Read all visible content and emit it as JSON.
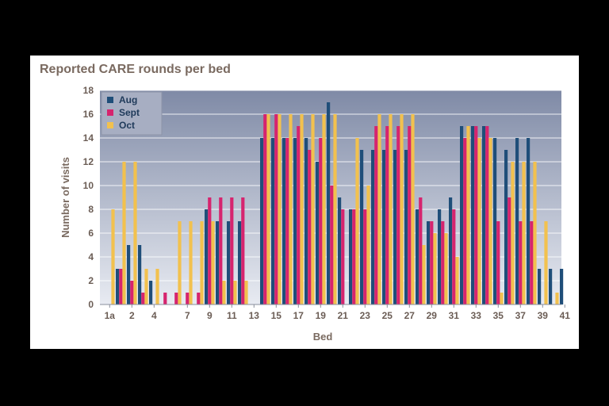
{
  "chart_data": {
    "type": "bar",
    "title": "Reported CARE rounds per bed",
    "xlabel": "Bed",
    "ylabel": "Number of visits",
    "ylim": [
      0,
      18
    ],
    "yticks": [
      0,
      2,
      4,
      6,
      8,
      10,
      12,
      14,
      16,
      18
    ],
    "grid": true,
    "legend_position": "top-left",
    "categories": [
      "1a",
      "1",
      "2",
      "3",
      "4",
      "5",
      "6",
      "7",
      "8",
      "9",
      "10",
      "11",
      "12",
      "13",
      "14",
      "15",
      "16",
      "17",
      "18",
      "19",
      "20",
      "21",
      "22",
      "23",
      "24",
      "25",
      "26",
      "27",
      "28",
      "29",
      "30",
      "31",
      "32",
      "33",
      "34",
      "35",
      "36",
      "37",
      "38",
      "39",
      "40",
      "41"
    ],
    "x_tick_labels": [
      "1a",
      "2",
      "4",
      "7",
      "9",
      "11",
      "13",
      "15",
      "17",
      "19",
      "21",
      "23",
      "25",
      "27",
      "29",
      "31",
      "33",
      "35",
      "37",
      "39",
      "41"
    ],
    "series": [
      {
        "name": "Aug",
        "color": "#1f4e79",
        "values": [
          0,
          3,
          5,
          5,
          2,
          0,
          0,
          0,
          0,
          8,
          7,
          7,
          7,
          0,
          14,
          14,
          14,
          14,
          14,
          12,
          17,
          9,
          8,
          13,
          13,
          13,
          13,
          13,
          8,
          7,
          8,
          9,
          15,
          15,
          15,
          14,
          13,
          14,
          14,
          3,
          3,
          3
        ]
      },
      {
        "name": "Sept",
        "color": "#d6246e",
        "values": [
          0,
          3,
          2,
          1,
          0,
          1,
          1,
          1,
          1,
          9,
          9,
          9,
          9,
          0,
          16,
          16,
          14,
          15,
          13,
          14,
          10,
          8,
          8,
          8,
          15,
          15,
          15,
          15,
          9,
          7,
          7,
          8,
          14,
          15,
          15,
          7,
          9,
          7,
          7,
          0,
          0,
          0
        ]
      },
      {
        "name": "Oct",
        "color": "#f2c14e",
        "values": [
          8,
          12,
          12,
          3,
          3,
          0,
          7,
          7,
          7,
          7,
          2,
          2,
          2,
          0,
          16,
          16,
          16,
          16,
          16,
          16,
          16,
          0,
          14,
          10,
          16,
          16,
          16,
          16,
          5,
          6,
          6,
          4,
          15,
          14,
          14,
          1,
          12,
          12,
          12,
          7,
          1,
          0
        ]
      }
    ]
  }
}
